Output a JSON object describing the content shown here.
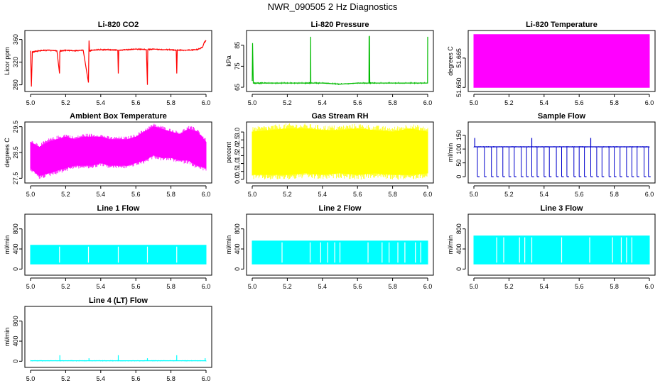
{
  "title": "NWR_090505  2 Hz Diagnostics",
  "chart_data": [
    {
      "type": "line",
      "title": "Li-820 CO2",
      "ylabel": "Licor ppm",
      "color": "#ff0000",
      "xlim": [
        5.0,
        6.0
      ],
      "ylim": [
        272,
        372
      ],
      "xticks": [
        "5.0",
        "5.2",
        "5.4",
        "5.6",
        "5.8",
        "6.0"
      ],
      "xtick_values": [
        5.0,
        5.2,
        5.4,
        5.6,
        5.8,
        6.0
      ],
      "yticks": [
        "280",
        "320",
        "360"
      ],
      "ytick_values": [
        280,
        320,
        360
      ],
      "series": [
        {
          "x": [
            5.0,
            5.005,
            5.01,
            5.05,
            5.1,
            5.15,
            5.165,
            5.167,
            5.17,
            5.2,
            5.25,
            5.3,
            5.33,
            5.333,
            5.336,
            5.35,
            5.4,
            5.45,
            5.497,
            5.5,
            5.503,
            5.55,
            5.6,
            5.66,
            5.666,
            5.668,
            5.7,
            5.75,
            5.8,
            5.83,
            5.833,
            5.836,
            5.9,
            5.95,
            5.98,
            5.99,
            6.0
          ],
          "y": [
            340,
            277,
            338,
            340,
            341,
            340,
            300,
            338,
            340,
            341,
            340,
            341,
            284,
            358,
            340,
            341,
            342,
            342,
            341,
            300,
            341,
            342,
            343,
            342,
            280,
            342,
            343,
            342,
            342,
            341,
            300,
            341,
            341,
            342,
            346,
            355,
            358
          ]
        }
      ]
    },
    {
      "type": "line",
      "title": "Li-820 Pressure",
      "ylabel": "kPa",
      "color": "#00bb00",
      "xlim": [
        5.0,
        6.0
      ],
      "ylim": [
        64,
        91
      ],
      "xticks": [
        "5.0",
        "5.2",
        "5.4",
        "5.6",
        "5.8",
        "6.0"
      ],
      "xtick_values": [
        5.0,
        5.2,
        5.4,
        5.6,
        5.8,
        6.0
      ],
      "yticks": [
        "65",
        "75",
        "85"
      ],
      "ytick_values": [
        65,
        75,
        85
      ],
      "series": [
        {
          "x": [
            5.0,
            5.002,
            5.006,
            5.05,
            5.1,
            5.2,
            5.3,
            5.332,
            5.333,
            5.334,
            5.4,
            5.5,
            5.6,
            5.665,
            5.666,
            5.668,
            5.67,
            5.7,
            5.8,
            5.9,
            5.999,
            6.0
          ],
          "y": [
            68,
            86,
            67,
            67,
            67,
            67,
            67,
            67,
            89,
            67,
            67,
            66.5,
            67,
            67,
            89,
            89,
            67,
            67,
            67,
            67,
            67,
            89
          ]
        }
      ]
    },
    {
      "type": "area",
      "title": "Li-820 Temperature",
      "ylabel": "degrees C",
      "color": "#ff00ff",
      "xlim": [
        5.0,
        6.0
      ],
      "ylim": [
        51.649,
        51.678
      ],
      "xticks": [
        "5.0",
        "5.2",
        "5.4",
        "5.6",
        "5.8",
        "6.0"
      ],
      "xtick_values": [
        5.0,
        5.2,
        5.4,
        5.6,
        5.8,
        6.0
      ],
      "yticks": [
        "51.650",
        "51.665"
      ],
      "ytick_values": [
        51.65,
        51.665
      ],
      "series": [
        {
          "x": [
            5.0,
            6.0
          ],
          "ymin": [
            51.65,
            51.65
          ],
          "ymax": [
            51.677,
            51.677
          ]
        }
      ]
    },
    {
      "type": "area",
      "title": "Ambient Box Temperature",
      "ylabel": "degrees C",
      "color": "#ff00ff",
      "xlim": [
        5.0,
        6.0
      ],
      "ylim": [
        27.4,
        29.6
      ],
      "xticks": [
        "5.0",
        "5.2",
        "5.4",
        "5.6",
        "5.8",
        "6.0"
      ],
      "xtick_values": [
        5.0,
        5.2,
        5.4,
        5.6,
        5.8,
        6.0
      ],
      "yticks": [
        "27.5",
        "28.5",
        "29.5"
      ],
      "ytick_values": [
        27.5,
        28.5,
        29.5
      ],
      "series": [
        {
          "x": [
            5.0,
            5.05,
            5.1,
            5.15,
            5.2,
            5.25,
            5.3,
            5.35,
            5.4,
            5.45,
            5.5,
            5.55,
            5.6,
            5.65,
            5.7,
            5.75,
            5.8,
            5.85,
            5.9,
            5.95,
            6.0
          ],
          "ymin": [
            27.9,
            27.6,
            27.7,
            27.8,
            27.9,
            28.0,
            28.0,
            28.0,
            28.1,
            28.0,
            28.0,
            28.0,
            28.1,
            28.2,
            28.4,
            28.3,
            28.3,
            28.2,
            28.2,
            28.0,
            27.9
          ],
          "ymax": [
            28.9,
            28.7,
            28.9,
            29.0,
            29.1,
            29.0,
            29.1,
            29.1,
            29.1,
            29.0,
            29.0,
            29.0,
            29.1,
            29.3,
            29.5,
            29.4,
            29.3,
            29.2,
            29.4,
            29.3,
            28.9
          ]
        }
      ]
    },
    {
      "type": "area",
      "title": "Gas Stream RH",
      "ylabel": "percent",
      "color": "#ffff00",
      "xlim": [
        5.0,
        6.0
      ],
      "ylim": [
        -0.1,
        3.5
      ],
      "xticks": [
        "5.0",
        "5.2",
        "5.4",
        "5.6",
        "5.8",
        "6.0"
      ],
      "xtick_values": [
        5.0,
        5.2,
        5.4,
        5.6,
        5.8,
        6.0
      ],
      "yticks": [
        "0.0",
        "0.5",
        "1.0",
        "1.5",
        "2.0",
        "2.5",
        "3.0"
      ],
      "ytick_values": [
        0,
        0.5,
        1.0,
        1.5,
        2.0,
        2.5,
        3.0
      ],
      "series": [
        {
          "x": [
            5.0,
            5.1,
            5.2,
            5.3,
            5.4,
            5.5,
            5.6,
            5.7,
            5.8,
            5.9,
            6.0
          ],
          "ymin": [
            0.3,
            0.3,
            0.3,
            0.4,
            0.3,
            0.4,
            0.3,
            0.4,
            0.3,
            0.3,
            0.4
          ],
          "ymax": [
            3.0,
            3.1,
            3.2,
            3.2,
            3.1,
            3.1,
            3.2,
            3.1,
            3.0,
            3.2,
            3.0
          ]
        }
      ]
    },
    {
      "type": "line",
      "title": "Sample Flow",
      "ylabel": "ml/min",
      "color": "#0000cc",
      "xlim": [
        5.0,
        6.0
      ],
      "ylim": [
        -15,
        190
      ],
      "xticks": [
        "5.0",
        "5.2",
        "5.4",
        "5.6",
        "5.8",
        "6.0"
      ],
      "xtick_values": [
        5.0,
        5.2,
        5.4,
        5.6,
        5.8,
        6.0
      ],
      "yticks": [
        "0",
        "50",
        "100",
        "150"
      ],
      "ytick_values": [
        0,
        50,
        100,
        150
      ],
      "baseline": 108,
      "dropout_value": 0,
      "dropout_x": [
        5.02,
        5.06,
        5.1,
        5.13,
        5.165,
        5.2,
        5.23,
        5.27,
        5.3,
        5.33,
        5.36,
        5.4,
        5.43,
        5.47,
        5.5,
        5.53,
        5.57,
        5.6,
        5.63,
        5.666,
        5.7,
        5.73,
        5.77,
        5.8,
        5.833,
        5.87,
        5.9,
        5.93,
        5.97,
        5.995
      ],
      "spike_x": [
        5.005,
        5.33,
        5.666
      ],
      "spike_values": [
        140,
        140,
        140
      ]
    },
    {
      "type": "area",
      "title": "Line 1 Flow",
      "ylabel": "ml/min",
      "color": "#00ffff",
      "xlim": [
        5.0,
        6.0
      ],
      "ylim": [
        -80,
        1050
      ],
      "xticks": [
        "5.0",
        "5.2",
        "5.4",
        "5.6",
        "5.8",
        "6.0"
      ],
      "xtick_values": [
        5.0,
        5.2,
        5.4,
        5.6,
        5.8,
        6.0
      ],
      "yticks": [
        "0",
        "400",
        "800"
      ],
      "ytick_values": [
        0,
        400,
        800
      ],
      "series": [
        {
          "x": [
            5.0,
            6.0
          ],
          "ymin": [
            100,
            100
          ],
          "ymax": [
            475,
            475
          ]
        }
      ],
      "gaps_x": [
        5.165,
        5.33,
        5.5,
        5.666,
        5.833
      ]
    },
    {
      "type": "area",
      "title": "Line 2 Flow",
      "ylabel": "ml/min",
      "color": "#00ffff",
      "xlim": [
        5.0,
        6.0
      ],
      "ylim": [
        -80,
        1050
      ],
      "xticks": [
        "5.0",
        "5.2",
        "5.4",
        "5.6",
        "5.8",
        "6.0"
      ],
      "xtick_values": [
        5.0,
        5.2,
        5.4,
        5.6,
        5.8,
        6.0
      ],
      "yticks": [
        "0",
        "400",
        "800"
      ],
      "ytick_values": [
        0,
        400,
        800
      ],
      "series": [
        {
          "x": [
            5.0,
            6.0
          ],
          "ymin": [
            100,
            100
          ],
          "ymax": [
            560,
            560
          ]
        }
      ],
      "gaps_x": [
        5.17,
        5.33,
        5.39,
        5.43,
        5.47,
        5.5,
        5.66,
        5.74,
        5.78,
        5.83,
        5.87,
        5.93,
        5.96
      ]
    },
    {
      "type": "area",
      "title": "Line 3 Flow",
      "ylabel": "ml/min",
      "color": "#00ffff",
      "xlim": [
        5.0,
        6.0
      ],
      "ylim": [
        -80,
        1050
      ],
      "xticks": [
        "5.0",
        "5.2",
        "5.4",
        "5.6",
        "5.8",
        "6.0"
      ],
      "xtick_values": [
        5.0,
        5.2,
        5.4,
        5.6,
        5.8,
        6.0
      ],
      "yticks": [
        "0",
        "400",
        "800"
      ],
      "ytick_values": [
        0,
        400,
        800
      ],
      "series": [
        {
          "x": [
            5.0,
            6.0
          ],
          "ymin": [
            100,
            100
          ],
          "ymax": [
            660,
            660
          ]
        }
      ],
      "gaps_x": [
        5.13,
        5.17,
        5.26,
        5.29,
        5.33,
        5.5,
        5.66,
        5.79,
        5.84,
        5.87,
        5.9
      ]
    },
    {
      "type": "line",
      "title": "Line 4 (LT) Flow",
      "ylabel": "ml/min",
      "color": "#00ffff",
      "xlim": [
        5.0,
        6.0
      ],
      "ylim": [
        -80,
        1050
      ],
      "xticks": [
        "5.0",
        "5.2",
        "5.4",
        "5.6",
        "5.8",
        "6.0"
      ],
      "xtick_values": [
        5.0,
        5.2,
        5.4,
        5.6,
        5.8,
        6.0
      ],
      "yticks": [
        "0",
        "400",
        "800"
      ],
      "ytick_values": [
        0,
        400,
        800
      ],
      "baseline": 10,
      "spike_x": [
        5.167,
        5.333,
        5.5,
        5.666,
        5.833,
        5.995
      ],
      "spike_values": [
        120,
        60,
        120,
        60,
        120,
        60
      ]
    }
  ]
}
